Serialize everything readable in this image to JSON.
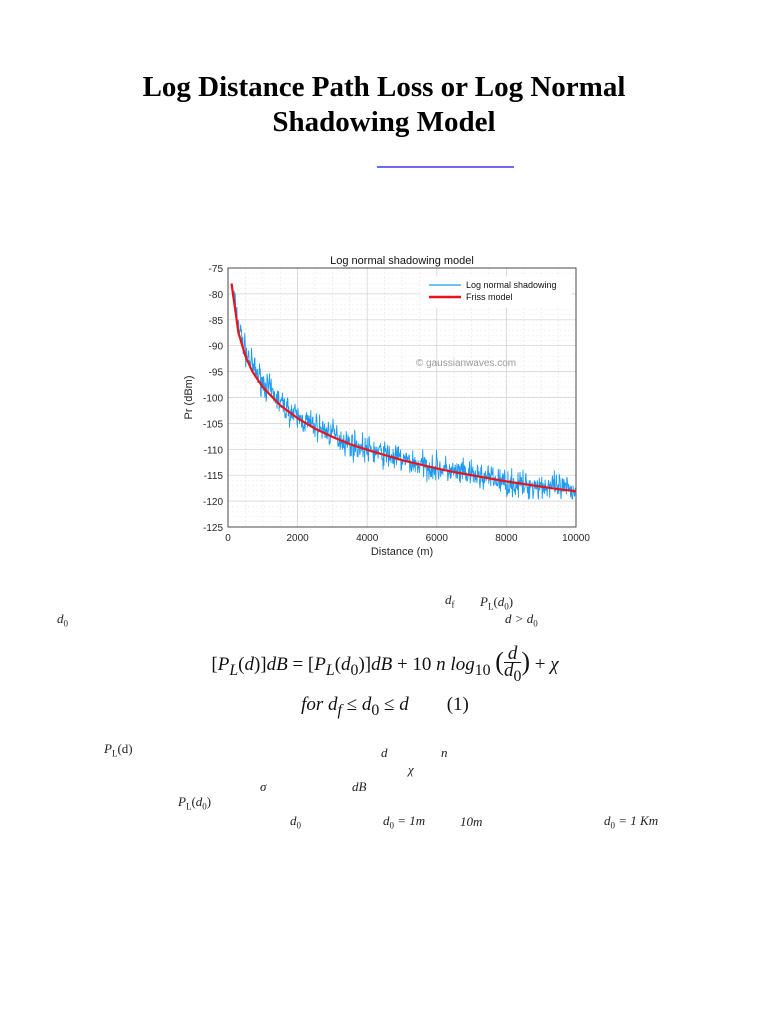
{
  "document": {
    "title_line1": "Log Distance Path Loss or Log Normal",
    "title_line2": "Shadowing Model",
    "link_color": "#6b6bf0"
  },
  "chart_data": {
    "type": "line",
    "title": "Log normal shadowing model",
    "xlabel": "Distance (m)",
    "ylabel": "P_r (dBm)",
    "xlim": [
      0,
      10000
    ],
    "ylim": [
      -125,
      -75
    ],
    "xticks": [
      0,
      2000,
      4000,
      6000,
      8000,
      10000
    ],
    "yticks": [
      -75,
      -80,
      -85,
      -90,
      -95,
      -100,
      -105,
      -110,
      -115,
      -120,
      -125
    ],
    "grid": true,
    "minor_grid": true,
    "legend_position": "upper right",
    "watermark": "© gaussianwaves.com",
    "series": [
      {
        "name": "Log normal shadowing",
        "color": "#1e9bf0",
        "style": "noisy",
        "x": [
          100,
          300,
          500,
          700,
          1000,
          1500,
          2000,
          2500,
          3000,
          3500,
          4000,
          4500,
          5000,
          5500,
          6000,
          6500,
          7000,
          7500,
          8000,
          8500,
          9000,
          9500,
          10000
        ],
        "values": [
          -78,
          -86,
          -91,
          -94,
          -97,
          -101,
          -104,
          -105.5,
          -107,
          -109,
          -110,
          -111,
          -112,
          -113,
          -113.5,
          -114.5,
          -115,
          -115.5,
          -116.5,
          -117,
          -117,
          -117.5,
          -118
        ]
      },
      {
        "name": "Friss model",
        "color": "#e8141a",
        "style": "smooth",
        "x": [
          100,
          300,
          500,
          700,
          1000,
          1500,
          2000,
          2500,
          3000,
          3500,
          4000,
          4500,
          5000,
          5500,
          6000,
          6500,
          7000,
          7500,
          8000,
          8500,
          9000,
          9500,
          10000
        ],
        "values": [
          -78,
          -87.5,
          -92,
          -95,
          -98,
          -101.5,
          -104,
          -106,
          -107.6,
          -109,
          -110.1,
          -111.1,
          -112.1,
          -112.9,
          -113.7,
          -114.4,
          -115,
          -115.6,
          -116.2,
          -116.7,
          -117.2,
          -117.7,
          -118.1
        ]
      }
    ]
  },
  "text_fragments": {
    "d_f": "d",
    "d_f_sub": "f",
    "PL_d0_top": "P",
    "PL_sub": "L",
    "PL_d0_arg": "(d",
    "zero": "0",
    "close": ")",
    "d_gt_d0": "d > d",
    "d0_left": "d",
    "PL_d": "P",
    "PL_d_arg": "(d)",
    "d_var": "d",
    "n_var": "n",
    "chi_var": "χ",
    "sigma_var": "σ",
    "dB_var": "dB",
    "PL_d0_b": "P",
    "d0_mid": "d",
    "d0_eq_1m": " = 1m",
    "ten_m": "10m",
    "d0_eq_1km": " = 1 Km"
  },
  "equation": {
    "line1": "[P_L(d)]dB = [P_L(d_0)]dB + 10 n log_10 (d/d_0) + χ",
    "line2": "for d_f ≤ d_0 ≤ d",
    "number": "(1)"
  }
}
